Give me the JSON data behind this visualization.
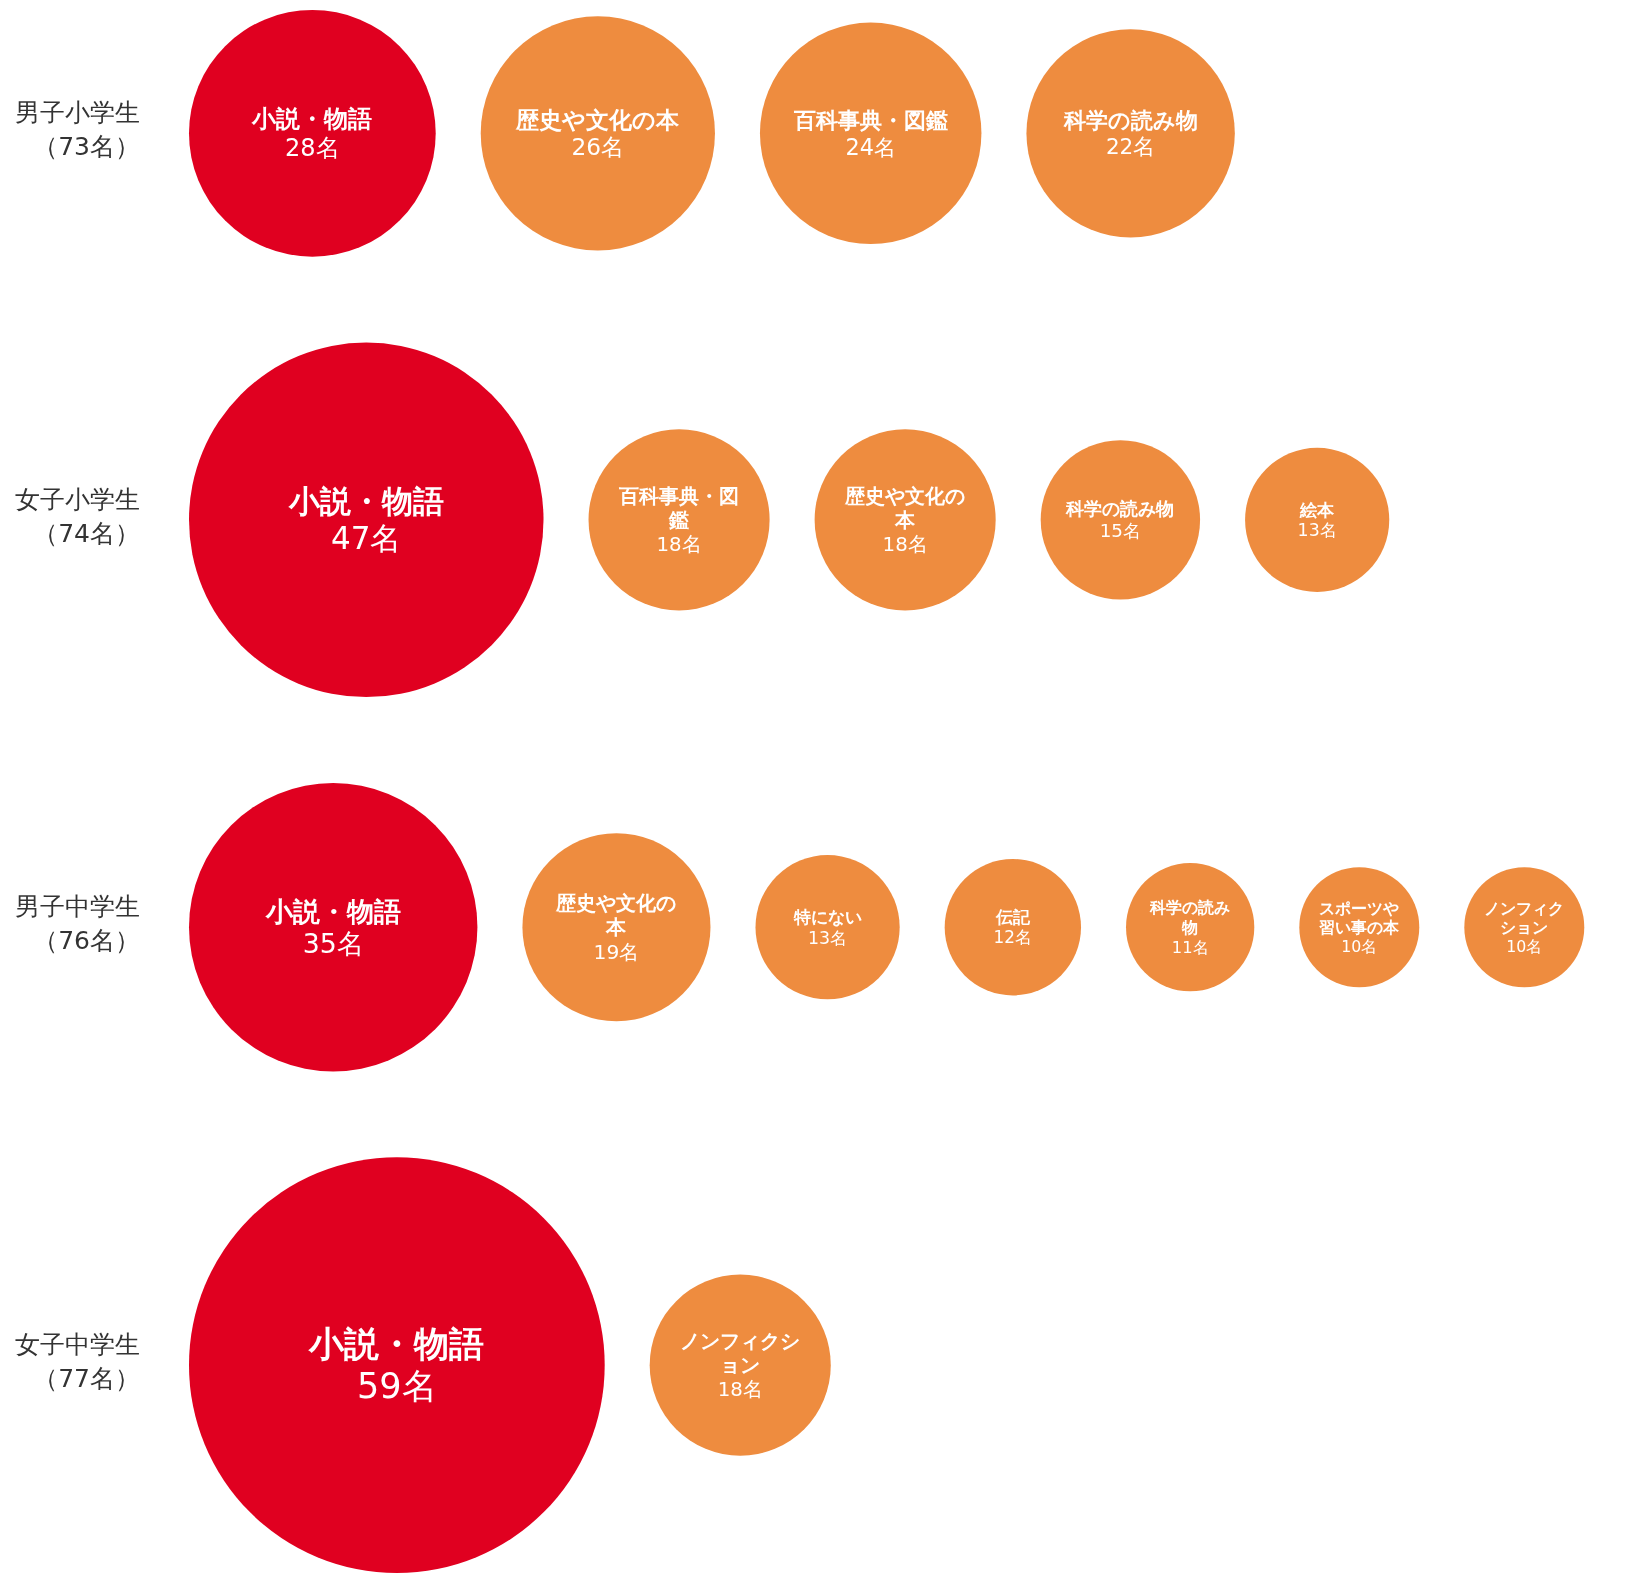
{
  "chart_data": [
    {
      "type": "other",
      "title": "男子小学生",
      "subtitle": "（73名）",
      "categories": [
        "小説・物語",
        "歴史や文化の本",
        "百科事典・図鑑",
        "科学の読み物"
      ],
      "values": [
        28,
        26,
        24,
        22
      ],
      "value_labels": [
        "28名",
        "26名",
        "24名",
        "22名"
      ],
      "colors": [
        "#e00020",
        "#ee8c3f",
        "#ee8c3f",
        "#ee8c3f"
      ]
    },
    {
      "type": "other",
      "title": "女子小学生",
      "subtitle": "（74名）",
      "categories": [
        "小説・物語",
        "百科事典・図鑑",
        "歴史や文化の本",
        "科学の読み物",
        "絵本"
      ],
      "values": [
        47,
        18,
        18,
        15,
        13
      ],
      "value_labels": [
        "47名",
        "18名",
        "18名",
        "15名",
        "13名"
      ],
      "colors": [
        "#e00020",
        "#ee8c3f",
        "#ee8c3f",
        "#ee8c3f",
        "#ee8c3f"
      ]
    },
    {
      "type": "other",
      "title": "男子中学生",
      "subtitle": "（76名）",
      "categories": [
        "小説・物語",
        "歴史や文化の本",
        "特にない",
        "伝記",
        "科学の読み物",
        "スポーツや習い事の本",
        "ノンフィクション"
      ],
      "values": [
        35,
        19,
        13,
        12,
        11,
        10,
        10
      ],
      "value_labels": [
        "35名",
        "19名",
        "13名",
        "12名",
        "11名",
        "10名",
        "10名"
      ],
      "colors": [
        "#e00020",
        "#ee8c3f",
        "#ee8c3f",
        "#ee8c3f",
        "#ee8c3f",
        "#ee8c3f",
        "#ee8c3f"
      ]
    },
    {
      "type": "other",
      "title": "女子中学生",
      "subtitle": "（77名）",
      "categories": [
        "小説・物語",
        "ノンフィクション"
      ],
      "values": [
        59,
        18
      ],
      "value_labels": [
        "59名",
        "18名"
      ],
      "colors": [
        "#e00020",
        "#ee8c3f"
      ]
    }
  ]
}
